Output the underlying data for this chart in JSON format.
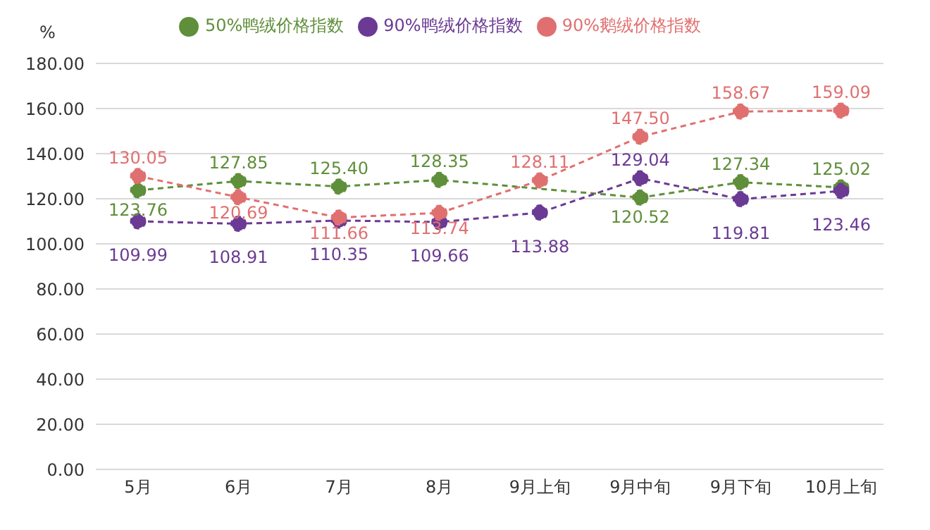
{
  "chart_data": {
    "type": "line",
    "ylabel": "%",
    "categories": [
      "5月",
      "6月",
      "7月",
      "8月",
      "9月上旬",
      "9月中旬",
      "9月下旬",
      "10月上旬"
    ],
    "series": [
      {
        "name": "50%鸭绒价格指数",
        "color": "#5f8f3a",
        "values": [
          123.76,
          127.85,
          125.4,
          128.35,
          null,
          120.52,
          127.34,
          125.02
        ],
        "value_labels": [
          "123.76",
          "127.85",
          "125.40",
          "128.35",
          null,
          "120.52",
          "127.34",
          "125.02"
        ]
      },
      {
        "name": "90%鸭绒价格指数",
        "color": "#6b3a94",
        "values": [
          109.99,
          108.91,
          110.35,
          109.66,
          113.88,
          129.04,
          119.81,
          123.46
        ],
        "value_labels": [
          "109.99",
          "108.91",
          "110.35",
          "109.66",
          "113.88",
          "129.04",
          "119.81",
          "123.46"
        ]
      },
      {
        "name": "90%鹅绒价格指数",
        "color": "#e07070",
        "values": [
          130.05,
          120.69,
          111.66,
          113.74,
          128.11,
          147.5,
          158.67,
          159.09
        ],
        "value_labels": [
          "130.05",
          "120.69",
          "111.66",
          "113.74",
          "128.11",
          "147.50",
          "158.67",
          "159.09"
        ]
      }
    ],
    "ylim": [
      0,
      180
    ],
    "yticks": [
      {
        "value": 0,
        "label": "0.00"
      },
      {
        "value": 20,
        "label": "20.00"
      },
      {
        "value": 40,
        "label": "40.00"
      },
      {
        "value": 60,
        "label": "60.00"
      },
      {
        "value": 80,
        "label": "80.00"
      },
      {
        "value": 100,
        "label": "100.00"
      },
      {
        "value": 120,
        "label": "120.00"
      },
      {
        "value": 140,
        "label": "140.00"
      },
      {
        "value": 160,
        "label": "160.00"
      },
      {
        "value": 180,
        "label": "180.00"
      }
    ],
    "grid": "y",
    "legend": "top",
    "marker": "circle",
    "line_style": "dashed"
  }
}
